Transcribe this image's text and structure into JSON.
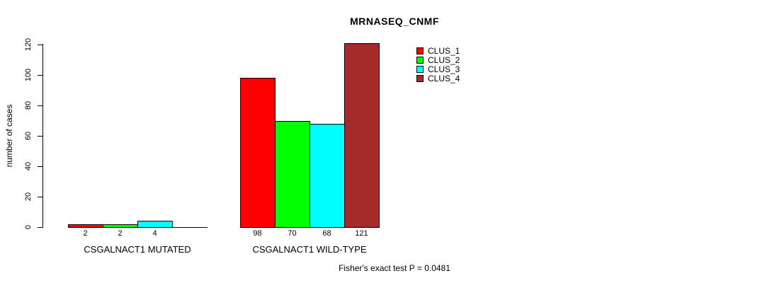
{
  "chart_data": {
    "type": "bar",
    "title": "MRNASEQ_CNMF",
    "ylabel": "number of cases",
    "xlabel": "",
    "ylim": [
      0,
      120
    ],
    "yticks": [
      0,
      20,
      40,
      60,
      80,
      100,
      120
    ],
    "grid": false,
    "legend_position": "upper-right-inside",
    "categories": [
      "CSGALNACT1 MUTATED",
      "CSGALNACT1 WILD-TYPE"
    ],
    "series": [
      {
        "name": "CLUS_1",
        "color": "#ff0000",
        "values": [
          2,
          98
        ]
      },
      {
        "name": "CLUS_2",
        "color": "#00ff00",
        "values": [
          2,
          70
        ]
      },
      {
        "name": "CLUS_3",
        "color": "#00ffff",
        "values": [
          4,
          68
        ]
      },
      {
        "name": "CLUS_4",
        "color": "#a52a2a",
        "values": [
          null,
          121
        ]
      }
    ],
    "bar_value_labels": true,
    "annotation": "Fisher's exact test P = 0.0481"
  },
  "colors": {
    "axis": "#000000",
    "background": "#ffffff"
  }
}
